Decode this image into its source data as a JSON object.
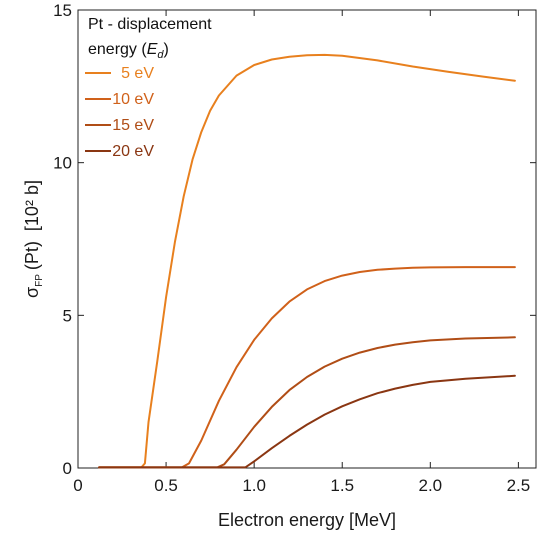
{
  "chart_data": {
    "type": "line",
    "xlabel": "Electron energy [MeV]",
    "ylabel": {
      "symbol": "σ",
      "subscript": "FP",
      "element": "(Pt)",
      "unit": "[10² b]"
    },
    "xlim": [
      0,
      2.6
    ],
    "ylim": [
      0,
      15
    ],
    "xticks": [
      "0",
      "0.5",
      "1.0",
      "1.5",
      "2.0",
      "2.5"
    ],
    "yticks": [
      "0",
      "5",
      "10",
      "15"
    ],
    "grid": false,
    "legend": {
      "placement": "top-left",
      "title_line1": "Pt - displacement",
      "title_line2_prefix": "energy (",
      "title_symbol": "E",
      "title_subscript": "d",
      "title_line2_suffix": ")"
    },
    "series": [
      {
        "name": "5 eV",
        "color": "#E8801E",
        "points": [
          [
            0.12,
            0.02
          ],
          [
            0.36,
            0.02
          ],
          [
            0.38,
            0.15
          ],
          [
            0.4,
            1.5
          ],
          [
            0.45,
            3.5
          ],
          [
            0.5,
            5.6
          ],
          [
            0.55,
            7.4
          ],
          [
            0.6,
            8.9
          ],
          [
            0.65,
            10.1
          ],
          [
            0.7,
            11.0
          ],
          [
            0.75,
            11.7
          ],
          [
            0.8,
            12.2
          ],
          [
            0.9,
            12.85
          ],
          [
            1.0,
            13.2
          ],
          [
            1.1,
            13.38
          ],
          [
            1.2,
            13.47
          ],
          [
            1.3,
            13.52
          ],
          [
            1.4,
            13.53
          ],
          [
            1.5,
            13.5
          ],
          [
            1.7,
            13.35
          ],
          [
            1.9,
            13.15
          ],
          [
            2.1,
            12.98
          ],
          [
            2.3,
            12.82
          ],
          [
            2.48,
            12.68
          ]
        ]
      },
      {
        "name": "10 eV",
        "color": "#D0611A",
        "points": [
          [
            0.12,
            0.02
          ],
          [
            0.59,
            0.02
          ],
          [
            0.63,
            0.15
          ],
          [
            0.7,
            0.9
          ],
          [
            0.8,
            2.2
          ],
          [
            0.9,
            3.3
          ],
          [
            1.0,
            4.2
          ],
          [
            1.1,
            4.9
          ],
          [
            1.2,
            5.45
          ],
          [
            1.3,
            5.85
          ],
          [
            1.4,
            6.12
          ],
          [
            1.5,
            6.3
          ],
          [
            1.6,
            6.42
          ],
          [
            1.7,
            6.49
          ],
          [
            1.8,
            6.53
          ],
          [
            1.9,
            6.56
          ],
          [
            2.0,
            6.57
          ],
          [
            2.2,
            6.58
          ],
          [
            2.48,
            6.58
          ]
        ]
      },
      {
        "name": "15 eV",
        "color": "#B04D16",
        "points": [
          [
            0.12,
            0.02
          ],
          [
            0.79,
            0.02
          ],
          [
            0.83,
            0.12
          ],
          [
            0.9,
            0.6
          ],
          [
            1.0,
            1.35
          ],
          [
            1.1,
            2.0
          ],
          [
            1.2,
            2.55
          ],
          [
            1.3,
            2.98
          ],
          [
            1.4,
            3.32
          ],
          [
            1.5,
            3.58
          ],
          [
            1.6,
            3.78
          ],
          [
            1.7,
            3.93
          ],
          [
            1.8,
            4.04
          ],
          [
            1.9,
            4.12
          ],
          [
            2.0,
            4.18
          ],
          [
            2.2,
            4.24
          ],
          [
            2.48,
            4.28
          ]
        ]
      },
      {
        "name": "20 eV",
        "color": "#8A3612",
        "points": [
          [
            0.12,
            0.02
          ],
          [
            0.95,
            0.02
          ],
          [
            1.0,
            0.22
          ],
          [
            1.1,
            0.65
          ],
          [
            1.2,
            1.05
          ],
          [
            1.3,
            1.42
          ],
          [
            1.4,
            1.75
          ],
          [
            1.5,
            2.02
          ],
          [
            1.6,
            2.25
          ],
          [
            1.7,
            2.45
          ],
          [
            1.8,
            2.6
          ],
          [
            1.9,
            2.72
          ],
          [
            2.0,
            2.82
          ],
          [
            2.2,
            2.92
          ],
          [
            2.48,
            3.02
          ]
        ]
      }
    ]
  }
}
